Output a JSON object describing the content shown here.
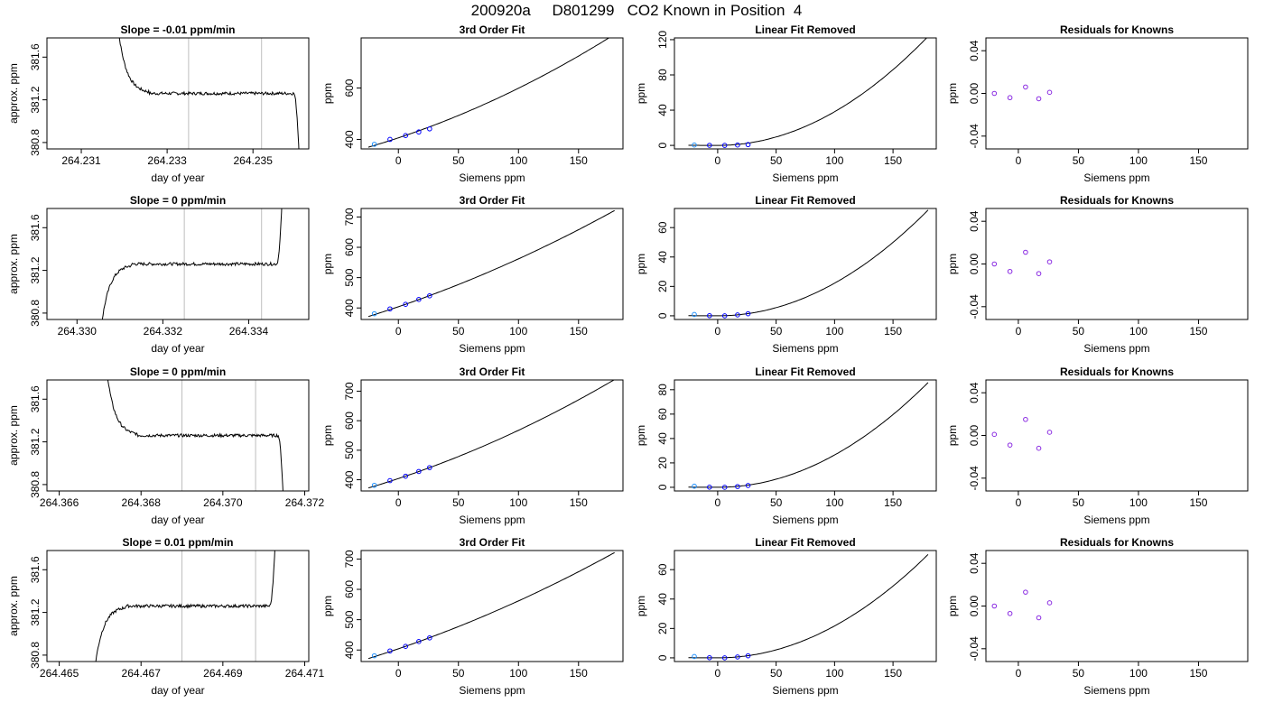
{
  "figure": {
    "title": "200920a     D801299   CO2 Known in Position  4",
    "background": "#ffffff"
  },
  "colors": {
    "axis": "#000000",
    "line": "#000000",
    "marker_point": "#0000ff",
    "marker_residual": "#8a2be2",
    "marker_first": "#1e90ff",
    "marker_highlight": "#ff00ff",
    "gridline_vertical": "#bebebe"
  },
  "chart_data": [
    {
      "row": 1,
      "col": 1,
      "type": "line",
      "title": "Slope =  -0.01  ppm/min",
      "xlabel": "day of year",
      "ylabel": "approx. ppm",
      "xlim": [
        264.2302,
        264.2363
      ],
      "ylim": [
        380.74,
        381.78
      ],
      "xticks": [
        "264.231",
        "264.233",
        "264.235"
      ],
      "xtick_values": [
        264.231,
        264.233,
        264.235
      ],
      "yticks": [
        "380.8",
        "381.2",
        "381.6"
      ],
      "ytick_values": [
        380.8,
        381.2,
        381.6
      ],
      "vlines": [
        264.2335,
        264.2352
      ],
      "trace": {
        "x0": 264.2318,
        "x1": 264.2361,
        "plateau": 381.26,
        "edge_start": "high",
        "edge_end": "low"
      }
    },
    {
      "row": 1,
      "col": 2,
      "type": "line-scatter",
      "title": "3rd Order Fit",
      "xlabel": "Siemens ppm",
      "ylabel": "ppm",
      "xlim": [
        -31,
        187
      ],
      "ylim": [
        363,
        795
      ],
      "xticks": [
        "0",
        "50",
        "100",
        "150"
      ],
      "xtick_values": [
        0,
        50,
        100,
        150
      ],
      "yticks": [
        "400",
        "600"
      ],
      "ytick_values": [
        400,
        600
      ],
      "curve": {
        "x0": -25,
        "x1": 180,
        "c0": 406,
        "c1": 1.55,
        "c2": 0.00382,
        "c3": 0.0
      },
      "points": [
        {
          "x": -20,
          "y": 381
        },
        {
          "x": -7,
          "y": 400
        },
        {
          "x": 6,
          "y": 415
        },
        {
          "x": 17,
          "y": 429
        },
        {
          "x": 26,
          "y": 441
        }
      ]
    },
    {
      "row": 1,
      "col": 3,
      "type": "line-scatter",
      "title": "Linear Fit Removed",
      "xlabel": "Siemens ppm",
      "ylabel": "ppm",
      "xlim": [
        -37,
        187
      ],
      "ylim": [
        -4,
        122
      ],
      "xticks": [
        "0",
        "50",
        "100",
        "150"
      ],
      "xtick_values": [
        0,
        50,
        100,
        150
      ],
      "yticks": [
        "0",
        "40",
        "80",
        "120"
      ],
      "ytick_values": [
        0,
        40,
        80,
        120
      ],
      "curve": {
        "x0": -25,
        "x1": 180,
        "c0": 0,
        "c1": 0,
        "c2": 0.00382,
        "c3": 0.0
      },
      "points": [
        {
          "x": -20,
          "y": 0.4
        },
        {
          "x": -7,
          "y": 0.1
        },
        {
          "x": 6,
          "y": 0.0
        },
        {
          "x": 17,
          "y": 0.4
        },
        {
          "x": 26,
          "y": 0.9
        }
      ]
    },
    {
      "row": 1,
      "col": 4,
      "type": "scatter",
      "title": "Residuals for Knowns",
      "xlabel": "Siemens ppm",
      "ylabel": "ppm",
      "xlim": [
        -27,
        191
      ],
      "ylim": [
        -0.052,
        0.052
      ],
      "xticks": [
        "0",
        "50",
        "100",
        "150"
      ],
      "xtick_values": [
        0,
        50,
        100,
        150
      ],
      "yticks": [
        "-0.04",
        "0.00",
        "0.04"
      ],
      "ytick_values": [
        -0.04,
        0.0,
        0.04
      ],
      "points": [
        {
          "x": -20,
          "y": 0.0
        },
        {
          "x": -7,
          "y": -0.004
        },
        {
          "x": 6,
          "y": 0.006
        },
        {
          "x": 17,
          "y": -0.005
        },
        {
          "x": 26,
          "y": 0.001
        }
      ]
    },
    {
      "row": 2,
      "col": 1,
      "type": "line",
      "title": "Slope =  0  ppm/min",
      "xlabel": "day of year",
      "ylabel": "approx. ppm",
      "xlim": [
        264.3293,
        264.3354
      ],
      "ylim": [
        380.74,
        381.78
      ],
      "xticks": [
        "264.330",
        "264.332",
        "264.334"
      ],
      "xtick_values": [
        264.33,
        264.332,
        264.334
      ],
      "yticks": [
        "380.8",
        "381.2",
        "381.6"
      ],
      "ytick_values": [
        380.8,
        381.2,
        381.6
      ],
      "vlines": [
        264.3325,
        264.3343
      ],
      "trace": {
        "x0": 264.3305,
        "x1": 264.3348,
        "plateau": 381.26,
        "edge_start": "low",
        "edge_end": "high"
      }
    },
    {
      "row": 2,
      "col": 2,
      "type": "line-scatter",
      "title": "3rd Order Fit",
      "xlabel": "Siemens ppm",
      "ylabel": "ppm",
      "xlim": [
        -31,
        187
      ],
      "ylim": [
        362,
        728
      ],
      "xticks": [
        "0",
        "50",
        "100",
        "150"
      ],
      "xtick_values": [
        0,
        50,
        100,
        150
      ],
      "yticks": [
        "400",
        "500",
        "600",
        "700"
      ],
      "ytick_values": [
        400,
        500,
        600,
        700
      ],
      "curve": {
        "x0": -25,
        "x1": 180,
        "c0": 404,
        "c1": 1.35,
        "c2": 0.00229,
        "c3": 0.0
      },
      "points": [
        {
          "x": -20,
          "y": 381
        },
        {
          "x": -7,
          "y": 397
        },
        {
          "x": 6,
          "y": 412
        },
        {
          "x": 17,
          "y": 428
        },
        {
          "x": 26,
          "y": 440
        }
      ]
    },
    {
      "row": 2,
      "col": 3,
      "type": "line-scatter",
      "title": "Linear Fit Removed",
      "xlabel": "Siemens ppm",
      "ylabel": "ppm",
      "xlim": [
        -37,
        187
      ],
      "ylim": [
        -2.5,
        73
      ],
      "xticks": [
        "0",
        "50",
        "100",
        "150"
      ],
      "xtick_values": [
        0,
        50,
        100,
        150
      ],
      "yticks": [
        "0",
        "20",
        "40",
        "60"
      ],
      "ytick_values": [
        0,
        20,
        40,
        60
      ],
      "curve": {
        "x0": -25,
        "x1": 180,
        "c0": 0,
        "c1": 0,
        "c2": 0.00222,
        "c3": 0.0
      },
      "points": [
        {
          "x": -20,
          "y": 0.9
        },
        {
          "x": -7,
          "y": 0.1
        },
        {
          "x": 6,
          "y": 0.0
        },
        {
          "x": 17,
          "y": 0.6
        },
        {
          "x": 26,
          "y": 1.4
        }
      ]
    },
    {
      "row": 2,
      "col": 4,
      "type": "scatter",
      "title": "Residuals for Knowns",
      "xlabel": "Siemens ppm",
      "ylabel": "ppm",
      "xlim": [
        -27,
        191
      ],
      "ylim": [
        -0.052,
        0.052
      ],
      "xticks": [
        "0",
        "50",
        "100",
        "150"
      ],
      "xtick_values": [
        0,
        50,
        100,
        150
      ],
      "yticks": [
        "-0.04",
        "0.00",
        "0.04"
      ],
      "ytick_values": [
        -0.04,
        0.0,
        0.04
      ],
      "points": [
        {
          "x": -20,
          "y": 0.0
        },
        {
          "x": -7,
          "y": -0.007
        },
        {
          "x": 6,
          "y": 0.011
        },
        {
          "x": 17,
          "y": -0.009
        },
        {
          "x": 26,
          "y": 0.002
        }
      ]
    },
    {
      "row": 3,
      "col": 1,
      "type": "line",
      "title": "Slope =  0  ppm/min",
      "xlabel": "day of year",
      "ylabel": "approx. ppm",
      "xlim": [
        264.3657,
        264.3721
      ],
      "ylim": [
        380.74,
        381.78
      ],
      "xticks": [
        "264.366",
        "264.368",
        "264.370",
        "264.372"
      ],
      "xtick_values": [
        264.366,
        264.368,
        264.37,
        264.372
      ],
      "yticks": [
        "380.8",
        "381.2",
        "381.6"
      ],
      "ytick_values": [
        380.8,
        381.2,
        381.6
      ],
      "vlines": [
        264.369,
        264.3708
      ],
      "trace": {
        "x0": 264.3671,
        "x1": 264.3715,
        "plateau": 381.26,
        "edge_start": "high",
        "edge_end": "low"
      }
    },
    {
      "row": 3,
      "col": 2,
      "type": "line-scatter",
      "title": "3rd Order Fit",
      "xlabel": "Siemens ppm",
      "ylabel": "ppm",
      "xlim": [
        -31,
        187
      ],
      "ylim": [
        362,
        738
      ],
      "xticks": [
        "0",
        "50",
        "100",
        "150"
      ],
      "xtick_values": [
        0,
        50,
        100,
        150
      ],
      "yticks": [
        "400",
        "500",
        "600",
        "700"
      ],
      "ytick_values": [
        400,
        500,
        600,
        700
      ],
      "curve": {
        "x0": -25,
        "x1": 180,
        "c0": 404,
        "c1": 1.35,
        "c2": 0.00285,
        "c3": 0.0
      },
      "points": [
        {
          "x": -20,
          "y": 381
        },
        {
          "x": -7,
          "y": 397
        },
        {
          "x": 6,
          "y": 412
        },
        {
          "x": 17,
          "y": 428
        },
        {
          "x": 26,
          "y": 441
        }
      ]
    },
    {
      "row": 3,
      "col": 3,
      "type": "line-scatter",
      "title": "Linear Fit Removed",
      "xlabel": "Siemens ppm",
      "ylabel": "ppm",
      "xlim": [
        -37,
        187
      ],
      "ylim": [
        -3,
        88
      ],
      "xticks": [
        "0",
        "50",
        "100",
        "150"
      ],
      "xtick_values": [
        0,
        50,
        100,
        150
      ],
      "yticks": [
        "0",
        "20",
        "40",
        "60",
        "80"
      ],
      "ytick_values": [
        0,
        20,
        40,
        60,
        80
      ],
      "curve": {
        "x0": -25,
        "x1": 180,
        "c0": 0,
        "c1": 0,
        "c2": 0.00265,
        "c3": 0.0
      },
      "points": [
        {
          "x": -20,
          "y": 0.9
        },
        {
          "x": -7,
          "y": 0.1
        },
        {
          "x": 6,
          "y": 0.0
        },
        {
          "x": 17,
          "y": 0.6
        },
        {
          "x": 26,
          "y": 1.5
        }
      ]
    },
    {
      "row": 3,
      "col": 4,
      "type": "scatter",
      "title": "Residuals for Knowns",
      "xlabel": "Siemens ppm",
      "ylabel": "ppm",
      "xlim": [
        -27,
        191
      ],
      "ylim": [
        -0.052,
        0.052
      ],
      "xticks": [
        "0",
        "50",
        "100",
        "150"
      ],
      "xtick_values": [
        0,
        50,
        100,
        150
      ],
      "yticks": [
        "-0.04",
        "0.00",
        "0.04"
      ],
      "ytick_values": [
        -0.04,
        0.0,
        0.04
      ],
      "points": [
        {
          "x": -20,
          "y": 0.001
        },
        {
          "x": -7,
          "y": -0.009
        },
        {
          "x": 6,
          "y": 0.015
        },
        {
          "x": 17,
          "y": -0.012
        },
        {
          "x": 26,
          "y": 0.003
        }
      ]
    },
    {
      "row": 4,
      "col": 1,
      "type": "line",
      "title": "Slope =  0.01  ppm/min",
      "xlabel": "day of year",
      "ylabel": "approx. ppm",
      "xlim": [
        264.4647,
        264.4711
      ],
      "ylim": [
        380.74,
        381.78
      ],
      "xticks": [
        "264.465",
        "264.467",
        "264.469",
        "264.471"
      ],
      "xtick_values": [
        264.465,
        264.467,
        264.469,
        264.471
      ],
      "yticks": [
        "380.8",
        "381.2",
        "381.6"
      ],
      "ytick_values": [
        380.8,
        381.2,
        381.6
      ],
      "vlines": [
        264.468,
        264.4698
      ],
      "trace": {
        "x0": 264.4658,
        "x1": 264.4703,
        "plateau": 381.26,
        "edge_start": "low",
        "edge_end": "high"
      }
    },
    {
      "row": 4,
      "col": 2,
      "type": "line-scatter",
      "title": "3rd Order Fit",
      "xlabel": "Siemens ppm",
      "ylabel": "ppm",
      "xlim": [
        -31,
        187
      ],
      "ylim": [
        362,
        728
      ],
      "xticks": [
        "0",
        "50",
        "100",
        "150"
      ],
      "xtick_values": [
        0,
        50,
        100,
        150
      ],
      "yticks": [
        "400",
        "500",
        "600",
        "700"
      ],
      "ytick_values": [
        400,
        500,
        600,
        700
      ],
      "curve": {
        "x0": -25,
        "x1": 180,
        "c0": 404,
        "c1": 1.35,
        "c2": 0.00229,
        "c3": 0.0
      },
      "points": [
        {
          "x": -20,
          "y": 381
        },
        {
          "x": -7,
          "y": 397
        },
        {
          "x": 6,
          "y": 412
        },
        {
          "x": 17,
          "y": 428
        },
        {
          "x": 26,
          "y": 440
        }
      ]
    },
    {
      "row": 4,
      "col": 3,
      "type": "line-scatter",
      "title": "Linear Fit Removed",
      "xlabel": "Siemens ppm",
      "ylabel": "ppm",
      "xlim": [
        -37,
        187
      ],
      "ylim": [
        -2.5,
        73
      ],
      "xticks": [
        "0",
        "50",
        "100",
        "150"
      ],
      "xtick_values": [
        0,
        50,
        100,
        150
      ],
      "yticks": [
        "0",
        "20",
        "40",
        "60"
      ],
      "ytick_values": [
        0,
        20,
        40,
        60
      ],
      "curve": {
        "x0": -25,
        "x1": 180,
        "c0": 0,
        "c1": 0,
        "c2": 0.00217,
        "c3": 0.0
      },
      "points": [
        {
          "x": -20,
          "y": 0.9
        },
        {
          "x": -7,
          "y": 0.1
        },
        {
          "x": 6,
          "y": 0.0
        },
        {
          "x": 17,
          "y": 0.6
        },
        {
          "x": 26,
          "y": 1.4
        }
      ]
    },
    {
      "row": 4,
      "col": 4,
      "type": "scatter",
      "title": "Residuals for Knowns",
      "xlabel": "Siemens ppm",
      "ylabel": "ppm",
      "xlim": [
        -27,
        191
      ],
      "ylim": [
        -0.052,
        0.052
      ],
      "xticks": [
        "0",
        "50",
        "100",
        "150"
      ],
      "xtick_values": [
        0,
        50,
        100,
        150
      ],
      "yticks": [
        "-0.04",
        "0.00",
        "0.04"
      ],
      "ytick_values": [
        -0.04,
        0.0,
        0.04
      ],
      "points": [
        {
          "x": -20,
          "y": 0.0
        },
        {
          "x": -7,
          "y": -0.007
        },
        {
          "x": 6,
          "y": 0.013
        },
        {
          "x": 17,
          "y": -0.011
        },
        {
          "x": 26,
          "y": 0.003
        }
      ]
    }
  ]
}
